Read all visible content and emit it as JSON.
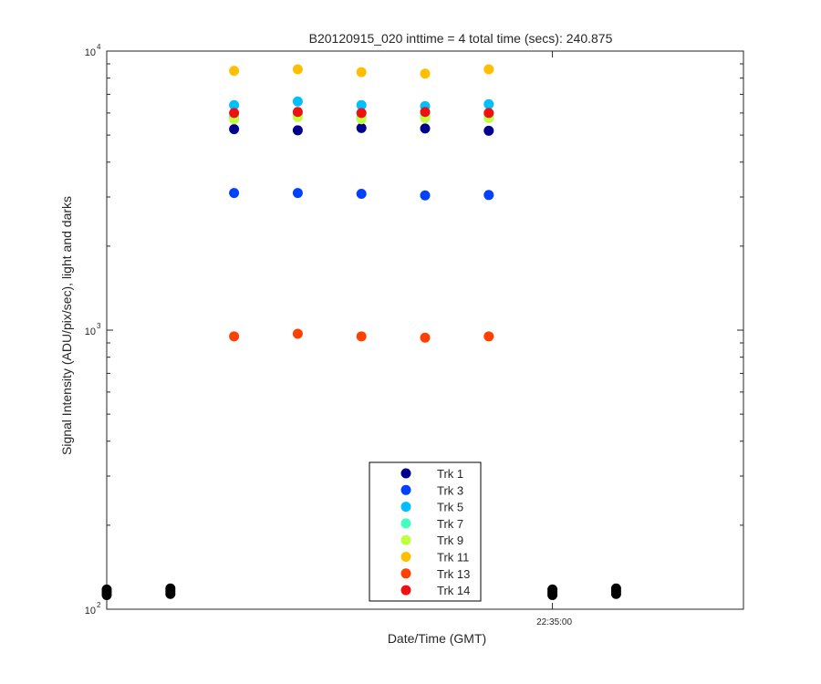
{
  "chart_data": {
    "type": "scatter",
    "title": "B20120915_020 inttime = 4 total time (secs): 240.875",
    "xlabel": "Date/Time (GMT)",
    "ylabel": "Signal Intensity (ADU/pix/sec), light and darks",
    "yscale": "log",
    "ylim": [
      100,
      10000
    ],
    "y_ticks": [
      {
        "base": "10",
        "exp": "2",
        "value": 100
      },
      {
        "base": "10",
        "exp": "3",
        "value": 1000
      },
      {
        "base": "10",
        "exp": "4",
        "value": 10000
      }
    ],
    "x_ticks": [
      {
        "label": "22:35:00",
        "value": 7
      }
    ],
    "xlim": [
      0,
      10
    ],
    "legend_position": "bottom-center",
    "series": [
      {
        "name": "Trk 1",
        "color": "#00008f",
        "x": [
          2,
          3,
          4,
          5,
          6
        ],
        "y": [
          5250,
          5200,
          5300,
          5280,
          5180
        ]
      },
      {
        "name": "Trk 3",
        "color": "#0040ff",
        "x": [
          2,
          3,
          4,
          5,
          6
        ],
        "y": [
          3100,
          3100,
          3080,
          3040,
          3050
        ]
      },
      {
        "name": "Trk 5",
        "color": "#00bfff",
        "x": [
          2,
          3,
          4,
          5,
          6
        ],
        "y": [
          6400,
          6600,
          6400,
          6350,
          6450
        ]
      },
      {
        "name": "Trk 7",
        "color": "#40ffbf",
        "x": [
          2,
          3,
          4,
          5,
          6
        ],
        "y": [
          5800,
          5900,
          5800,
          5850,
          5850
        ]
      },
      {
        "name": "Trk 9",
        "color": "#bfff40",
        "x": [
          2,
          3,
          4,
          5,
          6
        ],
        "y": [
          5700,
          5800,
          5700,
          5750,
          5750
        ]
      },
      {
        "name": "Trk 11",
        "color": "#ffbf00",
        "x": [
          2,
          3,
          4,
          5,
          6
        ],
        "y": [
          8500,
          8600,
          8400,
          8300,
          8600
        ]
      },
      {
        "name": "Trk 13",
        "color": "#ff4000",
        "x": [
          2,
          3,
          4,
          5,
          6
        ],
        "y": [
          950,
          970,
          950,
          940,
          950
        ]
      },
      {
        "name": "Trk 14",
        "color": "#ee1111",
        "x": [
          2,
          3,
          4,
          5,
          6
        ],
        "y": [
          6000,
          6050,
          6000,
          6050,
          6000
        ]
      }
    ],
    "darks": {
      "color": "#000000",
      "x": [
        0,
        1,
        7,
        8
      ],
      "y": [
        115,
        116,
        115,
        116
      ]
    }
  }
}
